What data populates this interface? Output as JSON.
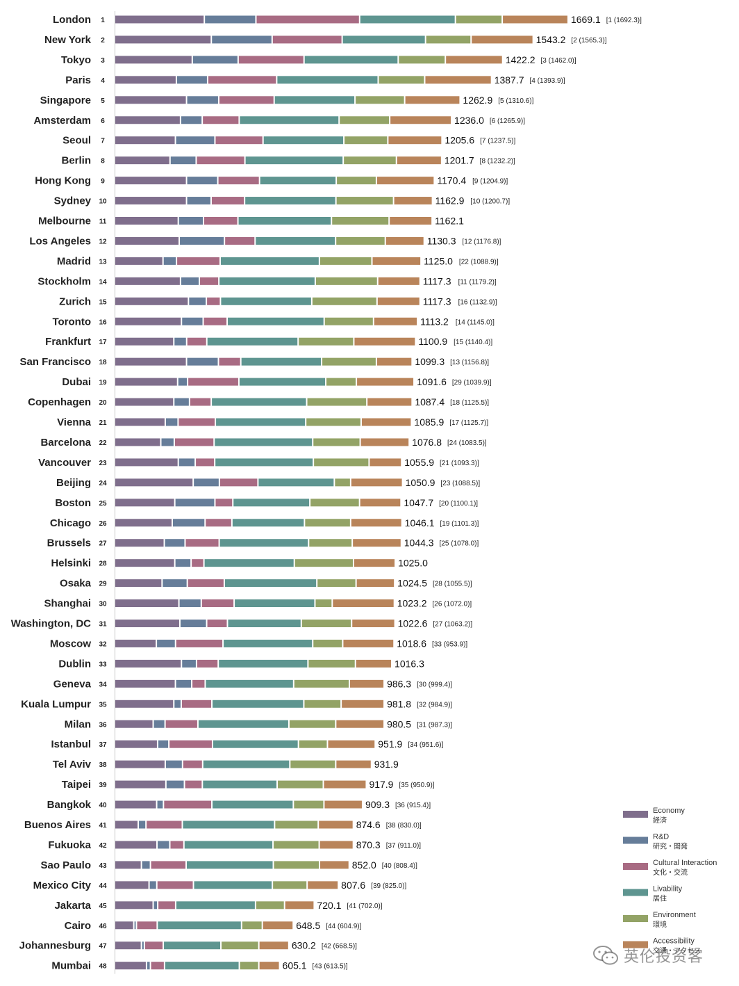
{
  "chart_data": {
    "type": "bar",
    "subtype": "stacked-horizontal",
    "title": "",
    "xlabel": "",
    "ylabel": "",
    "xlim": [
      0,
      1700
    ],
    "grid": false,
    "legend_position": "bottom-right",
    "series": [
      {
        "name": "Economy",
        "name_jp": "経済",
        "color": "#7f6e8c"
      },
      {
        "name": "R&D",
        "name_jp": "研究・開発",
        "color": "#667d99"
      },
      {
        "name": "Cultural Interaction",
        "name_jp": "文化・交流",
        "color": "#a86b83"
      },
      {
        "name": "Livability",
        "name_jp": "居住",
        "color": "#5e9590"
      },
      {
        "name": "Environment",
        "name_jp": "環境",
        "color": "#93a366"
      },
      {
        "name": "Accessibility",
        "name_jp": "交通・アクセス",
        "color": "#b9845a"
      }
    ],
    "cities": [
      {
        "name": "London",
        "rank": "1",
        "total": "1669.1",
        "prev": "[1 (1692.3)]",
        "values": [
          278,
          158,
          322,
          297,
          143,
          203
        ]
      },
      {
        "name": "New York",
        "rank": "2",
        "total": "1543.2",
        "prev": "[2 (1565.3)]",
        "values": [
          300,
          187,
          216,
          258,
          139,
          191
        ]
      },
      {
        "name": "Tokyo",
        "rank": "3",
        "total": "1422.2",
        "prev": "[3 (1462.0)]",
        "values": [
          240,
          140,
          203,
          292,
          144,
          176
        ]
      },
      {
        "name": "Paris",
        "rank": "4",
        "total": "1387.7",
        "prev": "[4 (1393.9)]",
        "values": [
          190,
          94,
          213,
          315,
          142,
          206
        ]
      },
      {
        "name": "Singapore",
        "rank": "5",
        "total": "1262.9",
        "prev": "[5 (1310.6)]",
        "values": [
          222,
          97,
          170,
          250,
          152,
          170
        ]
      },
      {
        "name": "Amsterdam",
        "rank": "6",
        "total": "1236.0",
        "prev": "[6 (1265.9)]",
        "values": [
          203,
          64,
          112,
          310,
          155,
          190
        ]
      },
      {
        "name": "Seoul",
        "rank": "7",
        "total": "1205.6",
        "prev": "[7 (1237.5)]",
        "values": [
          187,
          120,
          147,
          250,
          134,
          166
        ]
      },
      {
        "name": "Berlin",
        "rank": "8",
        "total": "1201.7",
        "prev": "[8 (1232.2)]",
        "values": [
          170,
          78,
          149,
          305,
          163,
          138
        ]
      },
      {
        "name": "Hong Kong",
        "rank": "9",
        "total": "1170.4",
        "prev": "[9 (1204.9)]",
        "values": [
          222,
          94,
          127,
          237,
          122,
          178
        ]
      },
      {
        "name": "Sydney",
        "rank": "10",
        "total": "1162.9",
        "prev": "[10 (1200.7)]",
        "values": [
          222,
          73,
          101,
          283,
          177,
          118
        ]
      },
      {
        "name": "Melbourne",
        "rank": "11",
        "total": "1162.1",
        "prev": "",
        "values": [
          196,
          75,
          104,
          290,
          177,
          131
        ]
      },
      {
        "name": "Los Angeles",
        "rank": "12",
        "total": "1130.3",
        "prev": "[12 (1176.8)]",
        "values": [
          199,
          138,
          92,
          249,
          152,
          118
        ]
      },
      {
        "name": "Madrid",
        "rank": "13",
        "total": "1125.0",
        "prev": "[22 (1088.9)]",
        "values": [
          148,
          38,
          133,
          308,
          161,
          150
        ]
      },
      {
        "name": "Stockholm",
        "rank": "14",
        "total": "1117.3",
        "prev": "[11 (1179.2)]",
        "values": [
          203,
          55,
          57,
          299,
          192,
          129
        ]
      },
      {
        "name": "Zurich",
        "rank": "15",
        "total": "1117.3",
        "prev": "[16 (1132.9)]",
        "values": [
          228,
          52,
          40,
          283,
          201,
          131
        ]
      },
      {
        "name": "Toronto",
        "rank": "16",
        "total": "1113.2",
        "prev": "[14 (1145.0)]",
        "values": [
          206,
          64,
          71,
          301,
          151,
          134
        ]
      },
      {
        "name": "Frankfurt",
        "rank": "17",
        "total": "1100.9",
        "prev": "[15 (1140.4)]",
        "values": [
          182,
          36,
          59,
          283,
          171,
          190
        ]
      },
      {
        "name": "San Francisco",
        "rank": "18",
        "total": "1099.3",
        "prev": "[13 (1156.8)]",
        "values": [
          222,
          96,
          66,
          250,
          168,
          108
        ]
      },
      {
        "name": "Dubai",
        "rank": "19",
        "total": "1091.6",
        "prev": "[29 (1039.9)]",
        "values": [
          194,
          27,
          157,
          269,
          92,
          177
        ]
      },
      {
        "name": "Copenhagen",
        "rank": "20",
        "total": "1087.4",
        "prev": "[18 (1125.5)]",
        "values": [
          182,
          45,
          64,
          296,
          185,
          138
        ]
      },
      {
        "name": "Vienna",
        "rank": "21",
        "total": "1085.9",
        "prev": "[17 (1125.7)]",
        "values": [
          155,
          36,
          113,
          280,
          170,
          154
        ]
      },
      {
        "name": "Barcelona",
        "rank": "22",
        "total": "1076.8",
        "prev": "[24 (1083.5)]",
        "values": [
          141,
          38,
          121,
          306,
          145,
          150
        ]
      },
      {
        "name": "Vancouver",
        "rank": "23",
        "total": "1055.9",
        "prev": "[21 (1093.3)]",
        "values": [
          196,
          49,
          57,
          306,
          171,
          98
        ]
      },
      {
        "name": "Beijing",
        "rank": "24",
        "total": "1050.9",
        "prev": "[23 (1088.5)]",
        "values": [
          243,
          78,
          117,
          236,
          47,
          159
        ]
      },
      {
        "name": "Boston",
        "rank": "25",
        "total": "1047.7",
        "prev": "[20 (1100.1)]",
        "values": [
          185,
          122,
          52,
          238,
          152,
          126
        ]
      },
      {
        "name": "Chicago",
        "rank": "26",
        "total": "1046.1",
        "prev": "[19 (1101.3)]",
        "values": [
          177,
          99,
          80,
          224,
          141,
          157
        ]
      },
      {
        "name": "Brussels",
        "rank": "27",
        "total": "1044.3",
        "prev": "[25 (1078.0)]",
        "values": [
          152,
          61,
          103,
          277,
          133,
          150
        ]
      },
      {
        "name": "Helsinki",
        "rank": "28",
        "total": "1025.0",
        "prev": "",
        "values": [
          185,
          47,
          36,
          280,
          182,
          127
        ]
      },
      {
        "name": "Osaka",
        "rank": "29",
        "total": "1024.5",
        "prev": "[28 (1055.5)]",
        "values": [
          145,
          75,
          112,
          287,
          119,
          117
        ]
      },
      {
        "name": "Shanghai",
        "rank": "30",
        "total": "1023.2",
        "prev": "[26 (1072.0)]",
        "values": [
          198,
          66,
          99,
          250,
          50,
          191
        ]
      },
      {
        "name": "Washington, DC",
        "rank": "31",
        "total": "1022.6",
        "prev": "[27 (1063.2)]",
        "values": [
          201,
          80,
          61,
          228,
          154,
          132
        ]
      },
      {
        "name": "Moscow",
        "rank": "32",
        "total": "1018.6",
        "prev": "[33 (953.9)]",
        "values": [
          127,
          56,
          145,
          278,
          90,
          157
        ]
      },
      {
        "name": "Dublin",
        "rank": "33",
        "total": "1016.3",
        "prev": "",
        "values": [
          206,
          43,
          64,
          278,
          145,
          110
        ]
      },
      {
        "name": "Geneva",
        "rank": "34",
        "total": "986.3",
        "prev": "[30 (999.4)]",
        "values": [
          187,
          47,
          38,
          274,
          171,
          105
        ]
      },
      {
        "name": "Kuala Lumpur",
        "rank": "35",
        "total": "981.8",
        "prev": "[32 (984.9)]",
        "values": [
          182,
          19,
          92,
          285,
          113,
          131
        ]
      },
      {
        "name": "Milan",
        "rank": "36",
        "total": "980.5",
        "prev": "[31 (987.3)]",
        "values": [
          117,
          33,
          99,
          282,
          143,
          148
        ]
      },
      {
        "name": "Istanbul",
        "rank": "37",
        "total": "951.9",
        "prev": "[34 (951.6)]",
        "values": [
          131,
          31,
          133,
          266,
          87,
          146
        ]
      },
      {
        "name": "Tel Aviv",
        "rank": "38",
        "total": "931.9",
        "prev": "",
        "values": [
          155,
          50,
          59,
          270,
          140,
          108
        ]
      },
      {
        "name": "Taipei",
        "rank": "39",
        "total": "917.9",
        "prev": "[35 (950.9)]",
        "values": [
          157,
          54,
          52,
          231,
          141,
          131
        ]
      },
      {
        "name": "Bangkok",
        "rank": "40",
        "total": "909.3",
        "prev": "[36 (915.4)]",
        "values": [
          128,
          17,
          148,
          252,
          92,
          117
        ]
      },
      {
        "name": "Buenos Aires",
        "rank": "41",
        "total": "874.6",
        "prev": "[38 (830.0)]",
        "values": [
          70,
          20,
          110,
          286,
          133,
          106
        ]
      },
      {
        "name": "Fukuoka",
        "rank": "42",
        "total": "870.3",
        "prev": "[37 (911.0)]",
        "values": [
          129,
          36,
          40,
          276,
          141,
          103
        ]
      },
      {
        "name": "Sao Paulo",
        "rank": "43",
        "total": "852.0",
        "prev": "[40 (808.4)]",
        "values": [
          80,
          24,
          108,
          270,
          141,
          89
        ]
      },
      {
        "name": "Mexico City",
        "rank": "44",
        "total": "807.6",
        "prev": "[39 (825.0)]",
        "values": [
          104,
          20,
          111,
          244,
          105,
          94
        ]
      },
      {
        "name": "Jakarta",
        "rank": "45",
        "total": "720.1",
        "prev": "[41 (702.0)]",
        "values": [
          117,
          10,
          52,
          247,
          87,
          89
        ]
      },
      {
        "name": "Cairo",
        "rank": "46",
        "total": "648.5",
        "prev": "[44 (604.9)]",
        "values": [
          56,
          4,
          61,
          261,
          61,
          93
        ]
      },
      {
        "name": "Johannesburg",
        "rank": "47",
        "total": "630.2",
        "prev": "[42 (668.5)]",
        "values": [
          80,
          5,
          55,
          177,
          115,
          90
        ]
      },
      {
        "name": "Mumbai",
        "rank": "48",
        "total": "605.1",
        "prev": "[43 (613.5)]",
        "values": [
          96,
          8,
          40,
          231,
          57,
          61
        ]
      }
    ]
  },
  "watermark": {
    "text": "英伦投资客"
  }
}
